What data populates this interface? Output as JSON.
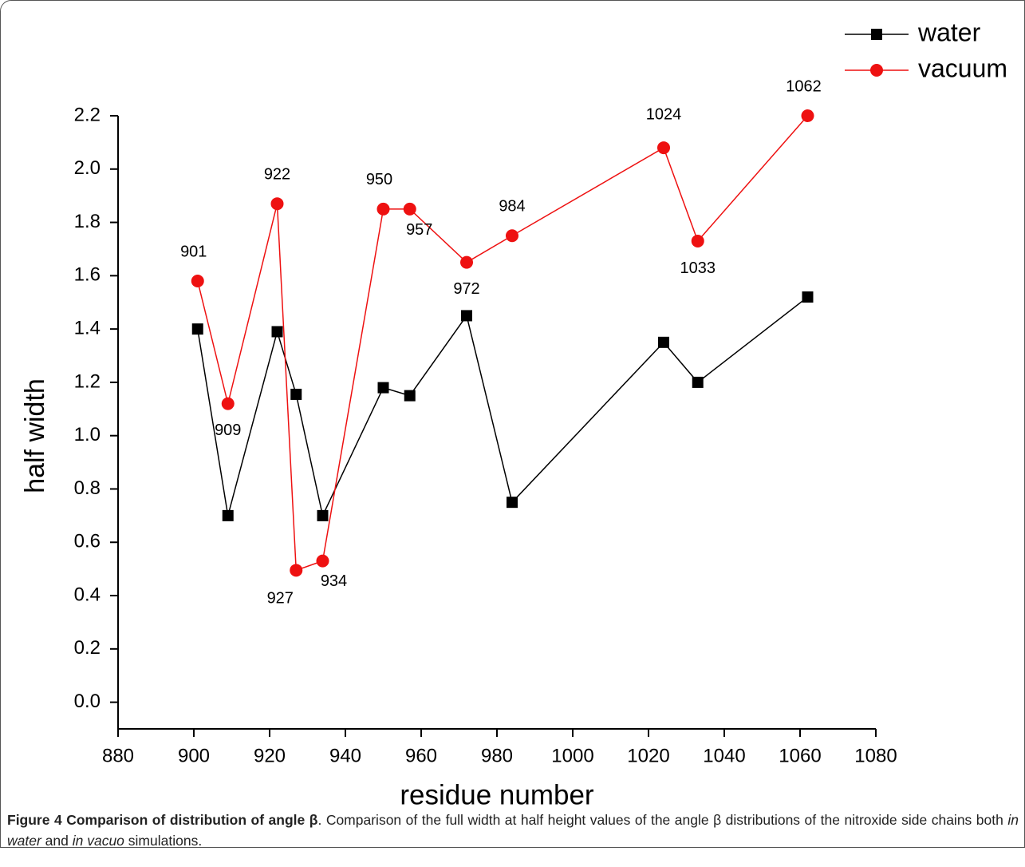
{
  "chart_data": {
    "type": "line",
    "x_label": "residue number",
    "y_label": "half width",
    "x": [
      901,
      909,
      922,
      927,
      934,
      950,
      957,
      972,
      984,
      1024,
      1033,
      1062
    ],
    "series": [
      {
        "name": "water",
        "color": "#000000",
        "marker": "square",
        "values": [
          1.4,
          0.7,
          1.39,
          1.155,
          0.7,
          1.18,
          1.15,
          1.45,
          0.75,
          1.35,
          1.2,
          1.52
        ]
      },
      {
        "name": "vacuum",
        "color": "#ee1111",
        "marker": "circle",
        "values": [
          1.58,
          1.12,
          1.87,
          0.495,
          0.53,
          1.85,
          1.85,
          1.65,
          1.75,
          2.08,
          1.73,
          2.2
        ]
      }
    ],
    "xlim": [
      880,
      1080
    ],
    "xticks": [
      880,
      900,
      920,
      940,
      960,
      980,
      1000,
      1020,
      1040,
      1060,
      1080
    ],
    "ylim": [
      -0.1,
      2.2
    ],
    "yticks": [
      {
        "value": 0,
        "label": "0.0"
      },
      0.2,
      0.4,
      0.6,
      0.8,
      {
        "value": 1,
        "label": "1.0"
      },
      1.2,
      1.4,
      1.6,
      1.8,
      {
        "value": 2,
        "label": "2.0"
      },
      2.2
    ],
    "legend": "top-right",
    "grid": false
  },
  "caption": {
    "title": "Figure 4 Comparison of distribution of angle β",
    "parts": [
      ". Comparison of the full width at half height values of the angle β distributions of the nitroxide side chains both ",
      "in water",
      " and ",
      "in vacuo",
      " simulations."
    ]
  }
}
